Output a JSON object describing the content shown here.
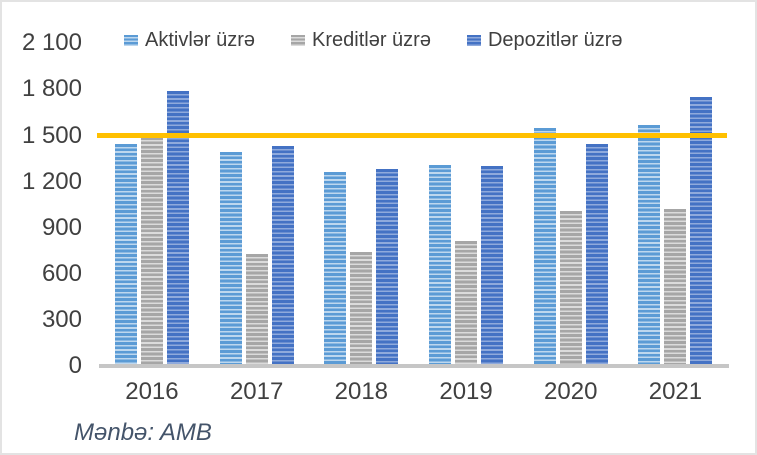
{
  "chart_data": {
    "type": "bar",
    "title": "",
    "categories": [
      "2016",
      "2017",
      "2018",
      "2019",
      "2020",
      "2021"
    ],
    "series": [
      {
        "name": "Aktivlər üzrə",
        "stripe_dark": "#5b9bd5",
        "stripe_light": "#bdd7ee",
        "values": [
          1445,
          1390,
          1265,
          1305,
          1550,
          1570
        ]
      },
      {
        "name": "Kreditlər üzrə",
        "stripe_dark": "#a6a6a6",
        "stripe_light": "#dbdbdb",
        "values": [
          1490,
          730,
          745,
          815,
          1010,
          1020
        ]
      },
      {
        "name": "Depozitlər üzrə",
        "stripe_dark": "#4472c4",
        "stripe_light": "#8faadc",
        "values": [
          1790,
          1430,
          1280,
          1300,
          1445,
          1750
        ]
      }
    ],
    "reference_line": {
      "value": 1500,
      "color": "#ffc000"
    },
    "y_ticks": [
      "2 100",
      "1 800",
      "1 500",
      "1 200",
      "900",
      "600",
      "300",
      "0"
    ],
    "y_tick_values": [
      2100,
      1800,
      1500,
      1200,
      900,
      600,
      300,
      0
    ],
    "ylim": [
      0,
      2100
    ],
    "xlabel": "",
    "ylabel": "",
    "grid": false,
    "legend_position": "top",
    "axis_line_color": "#c6c6c6"
  },
  "source_note": "Mənbə: AMB"
}
